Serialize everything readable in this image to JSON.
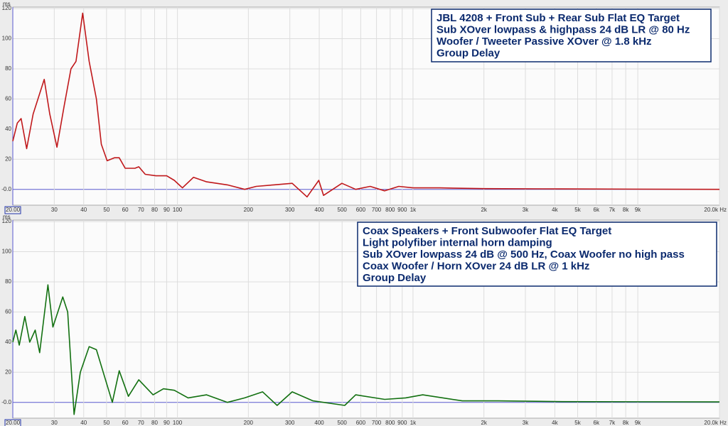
{
  "chart_data": [
    {
      "type": "line",
      "y_label": "ms",
      "log_x": true,
      "grid": true,
      "annotation": [
        "JBL 4208 + Front Sub + Rear Sub Flat EQ Target",
        "Sub XOver lowpass & highpass 24 dB LR @ 80 Hz",
        "Woofer / Tweeter Passive XOver @ 1.8 kHz",
        "Group Delay"
      ],
      "x": [
        20,
        20.9,
        21.7,
        22.9,
        24.4,
        27.2,
        28.7,
        30.8,
        33,
        35.3,
        37.1,
        39.6,
        42.2,
        45.3,
        47.5,
        50.3,
        54,
        56.6,
        60,
        66,
        68.5,
        73,
        81,
        90,
        97,
        105,
        117,
        133,
        163,
        193,
        216,
        256,
        307,
        355,
        398,
        417,
        499,
        571,
        658,
        758,
        870,
        1000,
        1300,
        2000,
        4300,
        20000
      ],
      "series": [
        {
          "name": "Group Delay",
          "color": "#c0181b",
          "values": [
            32,
            44,
            47,
            27,
            50,
            73,
            50,
            28,
            55,
            80,
            85,
            117,
            85,
            60,
            30,
            19,
            21,
            21,
            14,
            14,
            15,
            10,
            9,
            9,
            6,
            1,
            8,
            5,
            3,
            0,
            2,
            3,
            4,
            -5,
            6,
            -4,
            4,
            0,
            2,
            -1,
            2,
            1,
            1,
            0.5,
            0.3,
            0
          ]
        }
      ],
      "xlim": [
        20,
        20000
      ],
      "ylim": [
        -10.5,
        121
      ],
      "xticks": [
        {
          "value": 20,
          "label": "20.00"
        },
        30,
        40,
        50,
        60,
        70,
        80,
        90,
        100,
        200,
        300,
        400,
        500,
        600,
        700,
        800,
        900,
        {
          "value": 1000,
          "label": "1k"
        },
        {
          "value": 2000,
          "label": "2k"
        },
        {
          "value": 3000,
          "label": "3k"
        },
        {
          "value": 4000,
          "label": "4k"
        },
        {
          "value": 5000,
          "label": "5k"
        },
        {
          "value": 6000,
          "label": "6k"
        },
        {
          "value": 7000,
          "label": "7k"
        },
        {
          "value": 8000,
          "label": "8k"
        },
        {
          "value": 9000,
          "label": "9k"
        },
        {
          "value": 20000,
          "label": "20.0k Hz"
        }
      ],
      "yticks": [
        {
          "value": 0,
          "label": "-0.0"
        },
        20,
        40,
        60,
        80,
        100,
        120
      ]
    },
    {
      "type": "line",
      "y_label": "ms",
      "log_x": true,
      "grid": true,
      "annotation": [
        "Coax Speakers + Front Subwoofer Flat EQ Target",
        "Light polyfiber internal horn damping",
        "Sub XOver lowpass 24 dB @ 500 Hz, Coax Woofer no high pass",
        "Coax Woofer / Horn XOver 24 dB LR @ 1 kHz",
        "Group Delay"
      ],
      "x": [
        20,
        20.6,
        21.3,
        22.5,
        23.6,
        24.9,
        26,
        28.2,
        29.6,
        32.6,
        34.2,
        36.4,
        38.7,
        42.2,
        45.3,
        52.9,
        56.6,
        61.9,
        68.5,
        78.8,
        87.2,
        97,
        111,
        133,
        163,
        193,
        230,
        265,
        307,
        376,
        513,
        571,
        758,
        930,
        1100,
        1620,
        2300,
        4300,
        20000
      ],
      "series": [
        {
          "name": "Group Delay",
          "color": "#127010",
          "values": [
            40,
            48,
            38,
            57,
            40,
            48,
            33,
            78,
            50,
            70,
            60,
            -8,
            20,
            37,
            35,
            0,
            21,
            4,
            15,
            5,
            9,
            8,
            3,
            5,
            0,
            3,
            7,
            -2,
            7,
            1,
            -2,
            5,
            2,
            3,
            5,
            1,
            1,
            0.5,
            0.3
          ]
        }
      ],
      "xlim": [
        20,
        20000
      ],
      "ylim": [
        -10.5,
        121
      ],
      "xticks": [
        {
          "value": 20,
          "label": "20.00"
        },
        30,
        40,
        50,
        60,
        70,
        80,
        90,
        100,
        200,
        300,
        400,
        500,
        600,
        700,
        800,
        900,
        {
          "value": 1000,
          "label": "1k"
        },
        {
          "value": 2000,
          "label": "2k"
        },
        {
          "value": 3000,
          "label": "3k"
        },
        {
          "value": 4000,
          "label": "4k"
        },
        {
          "value": 5000,
          "label": "5k"
        },
        {
          "value": 6000,
          "label": "6k"
        },
        {
          "value": 7000,
          "label": "7k"
        },
        {
          "value": 8000,
          "label": "8k"
        },
        {
          "value": 9000,
          "label": "9k"
        },
        {
          "value": 20000,
          "label": "20.0k Hz"
        }
      ],
      "yticks": [
        {
          "value": 0,
          "label": "-0.0"
        },
        20,
        40,
        60,
        80,
        100,
        120
      ]
    }
  ]
}
